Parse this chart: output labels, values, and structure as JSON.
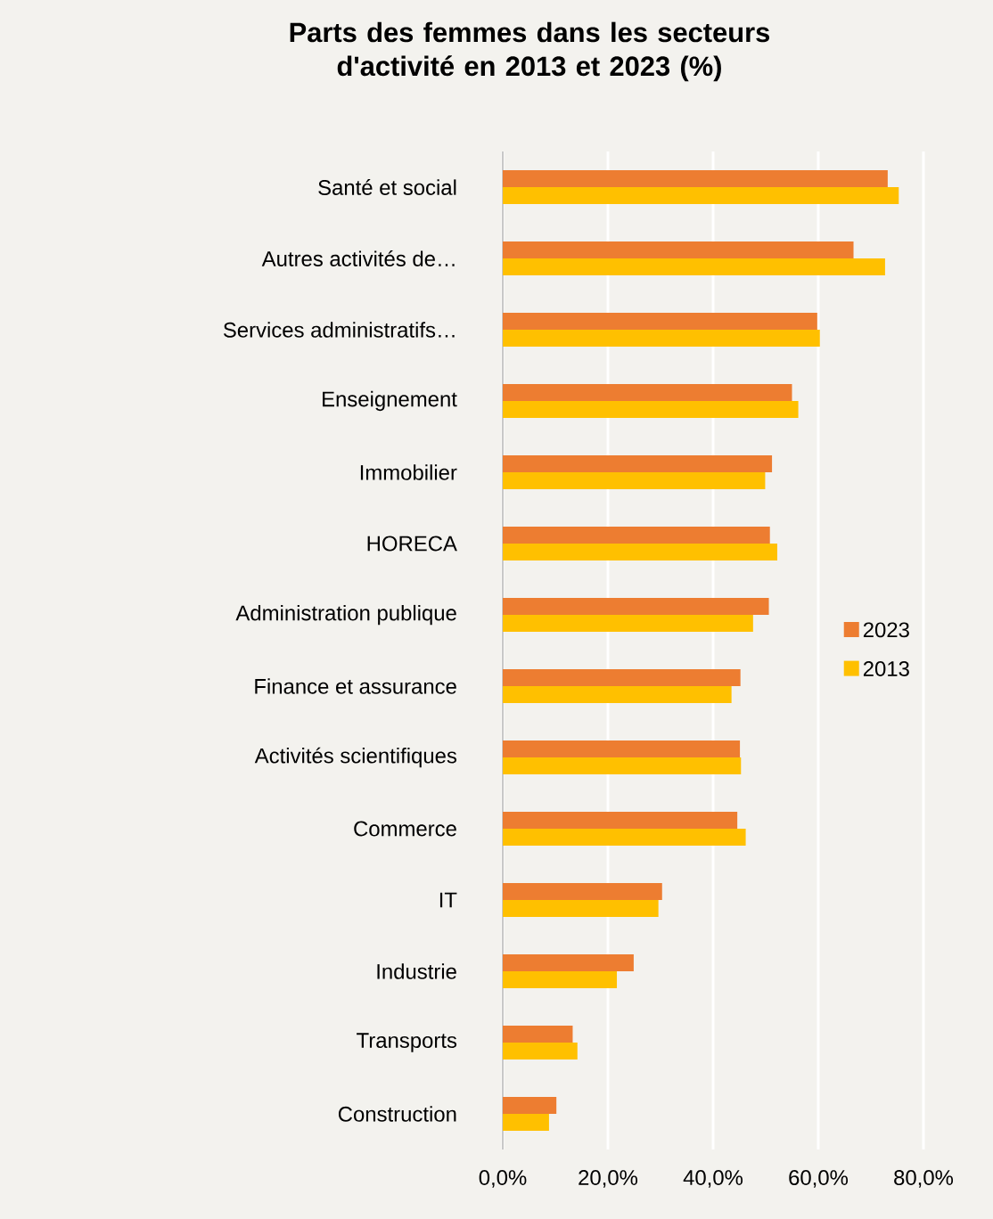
{
  "chart_data": {
    "type": "bar",
    "orientation": "horizontal",
    "title": "Parts des femmes dans les secteurs d'activité en 2013 et 2023 (%)",
    "categories": [
      "Santé et social",
      "Autres activités de…",
      "Services administratifs…",
      "Enseignement",
      "Immobilier",
      "HORECA",
      "Administration publique",
      "Finance et assurance",
      "Activités  scientifiques",
      "Commerce",
      "IT",
      "Industrie",
      "Transports",
      "Construction"
    ],
    "series": [
      {
        "name": "2023",
        "color": "#ed7d31",
        "values": [
          73.2,
          66.7,
          59.8,
          55.0,
          51.2,
          50.8,
          50.6,
          45.2,
          45.1,
          44.6,
          30.3,
          24.9,
          13.3,
          10.2
        ]
      },
      {
        "name": "2013",
        "color": "#ffc000",
        "values": [
          75.3,
          72.7,
          60.3,
          56.2,
          49.9,
          52.2,
          47.6,
          43.5,
          45.3,
          46.2,
          29.6,
          21.7,
          14.2,
          8.8
        ]
      }
    ],
    "xlim": [
      0,
      80
    ],
    "xticks": [
      {
        "value": 0,
        "label": "0,0%"
      },
      {
        "value": 20,
        "label": "20,0%"
      },
      {
        "value": 40,
        "label": "40,0%"
      },
      {
        "value": 60,
        "label": "60,0%"
      },
      {
        "value": 80,
        "label": "80,0%"
      }
    ],
    "grid": "x",
    "legend": "right"
  }
}
